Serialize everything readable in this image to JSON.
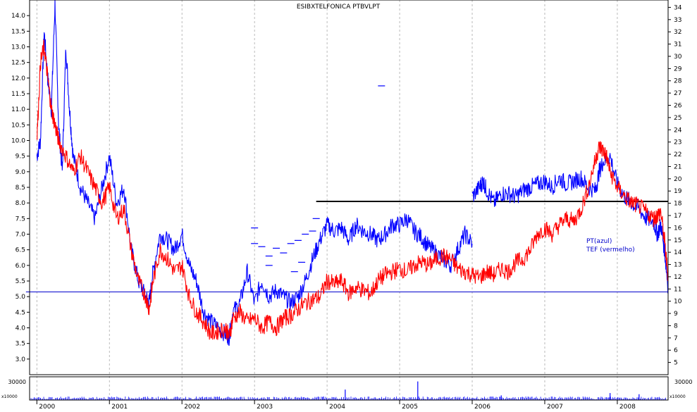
{
  "chart_data": {
    "type": "line",
    "title": "ESIBXTELFONICA PTBVLPT",
    "x_labels": [
      "2000",
      "2001",
      "2002",
      "2003",
      "2004",
      "2005",
      "2006",
      "2007",
      "2008"
    ],
    "left_axis": {
      "ylim": [
        2.5,
        14.5
      ],
      "ticks": [
        "3.0",
        "3.5",
        "4.0",
        "4.5",
        "5.0",
        "5.5",
        "6.0",
        "6.5",
        "7.0",
        "7.5",
        "8.0",
        "8.5",
        "9.0",
        "9.5",
        "10.0",
        "10.5",
        "11.0",
        "11.5",
        "12.0",
        "12.5",
        "13.0",
        "13.5",
        "14.0"
      ]
    },
    "right_axis": {
      "ylim": [
        4,
        34.6
      ],
      "ticks": [
        "5",
        "6",
        "7",
        "8",
        "9",
        "10",
        "11",
        "12",
        "13",
        "14",
        "15",
        "16",
        "17",
        "18",
        "19",
        "20",
        "21",
        "22",
        "23",
        "24",
        "25",
        "26",
        "27",
        "28",
        "29",
        "30",
        "31",
        "32",
        "33",
        "34"
      ]
    },
    "volume_axis": {
      "left_label": "30000",
      "right_label": "30000",
      "left_scale": "x10000",
      "right_scale": "x10000"
    },
    "legend": [
      "PT(azul)",
      "TEF (vermelho)"
    ],
    "hlines": [
      {
        "value": 8.05,
        "x_from": 2003.85,
        "x_to": 2008.7,
        "color": "#000000"
      },
      {
        "value": 5.15,
        "x_from": 1999.85,
        "x_to": 2008.7,
        "color": "#0000cc"
      }
    ],
    "series": [
      {
        "color": "#0000ff",
        "segments": [
          {
            "x": [
              2000.0,
              2000.05,
              2000.1,
              2000.15,
              2000.2,
              2000.25,
              2000.3,
              2000.35,
              2000.4,
              2000.45,
              2000.5,
              2000.6,
              2000.7,
              2000.8,
              2000.9,
              2001.0,
              2001.1,
              2001.2,
              2001.3,
              2001.4,
              2001.5,
              2001.55,
              2001.6,
              2001.7,
              2001.8,
              2001.9,
              2002.0,
              2002.1,
              2002.2,
              2002.3,
              2002.4,
              2002.5,
              2002.6,
              2002.65,
              2002.7,
              2002.8,
              2002.9,
              2003.0,
              2003.1,
              2003.2,
              2003.3,
              2003.4,
              2003.5,
              2003.6,
              2003.7,
              2003.8,
              2003.9,
              2004.0,
              2004.1,
              2004.2,
              2004.3,
              2004.4,
              2004.5,
              2004.6,
              2004.7,
              2004.8,
              2004.9,
              2005.0,
              2005.1,
              2005.2,
              2005.3,
              2005.4,
              2005.5,
              2005.6,
              2005.7,
              2005.8,
              2005.9,
              2006.0
            ],
            "y": [
              9.5,
              10.0,
              13.5,
              12.0,
              11.0,
              14.4,
              10.5,
              9.0,
              13.0,
              11.0,
              9.5,
              8.5,
              8.0,
              7.5,
              8.5,
              9.5,
              8.0,
              8.5,
              6.5,
              5.5,
              5.0,
              4.8,
              5.8,
              7.0,
              6.8,
              6.5,
              7.0,
              6.0,
              5.5,
              4.5,
              4.2,
              4.0,
              3.8,
              3.7,
              4.5,
              4.8,
              5.8,
              4.8,
              5.5,
              5.0,
              5.2,
              5.0,
              4.8,
              5.0,
              5.5,
              6.2,
              6.8,
              7.3,
              7.1,
              7.2,
              6.8,
              7.3,
              7.1,
              7.0,
              6.8,
              7.0,
              7.3,
              7.3,
              7.5,
              7.1,
              6.9,
              6.6,
              6.4,
              6.2,
              6.0,
              6.5,
              7.0,
              6.7
            ]
          },
          {
            "x": [
              2006.0,
              2006.1,
              2006.15,
              2006.2,
              2006.3,
              2006.4,
              2006.5,
              2006.6,
              2006.7,
              2006.8,
              2006.9,
              2007.0,
              2007.1,
              2007.2,
              2007.3,
              2007.4,
              2007.5,
              2007.6,
              2007.7,
              2007.75,
              2007.8,
              2007.9,
              2008.0,
              2008.1,
              2008.2,
              2008.3,
              2008.4,
              2008.5,
              2008.55,
              2008.6,
              2008.65,
              2008.7
            ],
            "y": [
              8.2,
              8.5,
              8.7,
              8.4,
              8.0,
              8.3,
              8.3,
              8.2,
              8.4,
              8.5,
              8.6,
              8.7,
              8.5,
              8.8,
              8.6,
              8.7,
              8.8,
              8.5,
              8.4,
              9.0,
              9.3,
              9.5,
              8.6,
              8.2,
              8.0,
              7.8,
              7.5,
              7.4,
              7.0,
              7.3,
              6.5,
              5.3
            ]
          }
        ]
      },
      {
        "color": "#ff0000",
        "segments": [
          {
            "x": [
              2000.0,
              2000.05,
              2000.1,
              2000.15,
              2000.2,
              2000.25,
              2000.3,
              2000.4,
              2000.5,
              2000.6,
              2000.7,
              2000.8,
              2000.9,
              2001.0,
              2001.1,
              2001.2,
              2001.3,
              2001.4,
              2001.5,
              2001.55,
              2001.6,
              2001.7,
              2001.8,
              2001.9,
              2002.0,
              2002.1,
              2002.2,
              2002.3,
              2002.4,
              2002.5,
              2002.6,
              2002.65,
              2002.7,
              2002.8,
              2002.9,
              2003.0,
              2003.1,
              2003.2,
              2003.3,
              2003.4,
              2003.5,
              2003.6,
              2003.7,
              2003.8,
              2003.9,
              2004.0,
              2004.1,
              2004.2,
              2004.3,
              2004.4,
              2004.5,
              2004.6,
              2004.7,
              2004.8,
              2004.9,
              2005.0,
              2005.1,
              2005.2,
              2005.3,
              2005.4,
              2005.5,
              2005.6,
              2005.7,
              2005.8,
              2005.9,
              2006.0,
              2006.1,
              2006.2,
              2006.3,
              2006.4,
              2006.5,
              2006.6,
              2006.7,
              2006.8,
              2006.9,
              2007.0,
              2007.1,
              2007.2,
              2007.3,
              2007.4,
              2007.5,
              2007.6,
              2007.7,
              2007.75,
              2007.8,
              2007.85,
              2007.9,
              2008.0,
              2008.1,
              2008.2,
              2008.3,
              2008.4,
              2008.5,
              2008.55,
              2008.6,
              2008.65,
              2008.7
            ],
            "y": [
              10.0,
              12.5,
              13.0,
              12.0,
              11.0,
              10.5,
              10.0,
              9.5,
              9.0,
              9.5,
              9.0,
              8.5,
              8.0,
              8.5,
              7.5,
              7.8,
              6.5,
              5.5,
              5.0,
              4.6,
              5.5,
              6.5,
              6.2,
              5.8,
              6.0,
              5.0,
              4.5,
              4.2,
              3.8,
              3.9,
              4.0,
              3.7,
              4.3,
              4.5,
              4.2,
              4.3,
              4.0,
              4.2,
              4.0,
              4.3,
              4.4,
              4.6,
              4.8,
              4.9,
              5.0,
              5.5,
              5.4,
              5.5,
              5.1,
              5.3,
              5.2,
              5.1,
              5.5,
              5.7,
              5.8,
              5.9,
              5.8,
              6.0,
              6.1,
              6.0,
              6.2,
              6.3,
              6.2,
              5.9,
              5.8,
              5.7,
              5.6,
              5.8,
              5.7,
              5.9,
              5.8,
              6.1,
              6.2,
              6.5,
              7.0,
              7.2,
              7.0,
              7.3,
              7.5,
              7.4,
              7.8,
              8.5,
              9.4,
              9.8,
              9.7,
              9.5,
              9.0,
              8.5,
              8.2,
              8.0,
              7.9,
              7.7,
              7.5,
              7.6,
              7.7,
              6.8,
              5.6
            ]
          }
        ]
      }
    ],
    "volume_spikes": [
      {
        "x": 2004.25,
        "v": 0.45
      },
      {
        "x": 2005.25,
        "v": 0.8
      },
      {
        "x": 2007.9,
        "v": 0.3
      },
      {
        "x": 2008.3,
        "v": 0.25
      },
      {
        "x": 2006.4,
        "v": 0.2
      },
      {
        "x": 2003.95,
        "v": 0.15
      }
    ],
    "scatter_marks": [
      {
        "x": 2004.75,
        "y": 11.75
      },
      {
        "x": 2003.0,
        "y": 6.7
      },
      {
        "x": 2003.1,
        "y": 6.6
      },
      {
        "x": 2003.2,
        "y": 6.3
      },
      {
        "x": 2003.3,
        "y": 6.55
      },
      {
        "x": 2003.4,
        "y": 6.4
      },
      {
        "x": 2003.2,
        "y": 6.0
      },
      {
        "x": 2003.5,
        "y": 6.7
      },
      {
        "x": 2003.6,
        "y": 6.8
      },
      {
        "x": 2003.65,
        "y": 6.1
      },
      {
        "x": 2003.55,
        "y": 5.8
      },
      {
        "x": 2003.7,
        "y": 7.0
      },
      {
        "x": 2003.8,
        "y": 7.1
      },
      {
        "x": 2003.85,
        "y": 7.5
      },
      {
        "x": 2003.0,
        "y": 7.2
      }
    ]
  }
}
